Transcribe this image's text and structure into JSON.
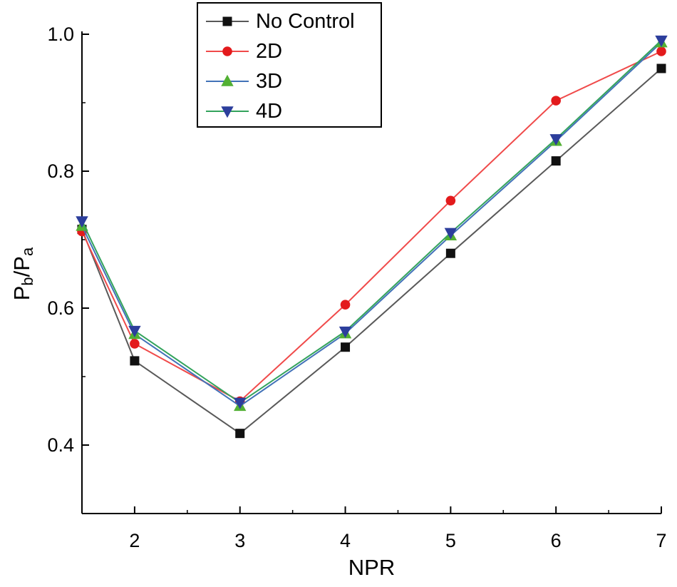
{
  "page": {
    "background": "#ffffff"
  },
  "chart_data": {
    "type": "line",
    "title": "",
    "xlabel": "NPR",
    "ylabel": "Pb/Pa",
    "ylabel_parts": [
      {
        "text": "P",
        "sub": false
      },
      {
        "text": "b",
        "sub": true
      },
      {
        "text": "/P",
        "sub": false
      },
      {
        "text": "a",
        "sub": true
      }
    ],
    "xlim": [
      1.5,
      7
    ],
    "ylim": [
      0.3,
      1.0
    ],
    "xticks": [
      2,
      3,
      4,
      5,
      6,
      7
    ],
    "yticks": [
      0.4,
      0.6,
      0.8,
      1.0
    ],
    "x_minor_ticks": [
      2.5,
      3.5,
      4.5,
      5.5,
      6.5
    ],
    "y_minor_ticks": [
      0.5,
      0.7,
      0.9
    ],
    "x": [
      1.5,
      2,
      3,
      4,
      5,
      6,
      7
    ],
    "series": [
      {
        "name": "No Control",
        "marker": "square",
        "marker_color": "#111111",
        "line_color": "#595959",
        "values": [
          0.715,
          0.523,
          0.417,
          0.543,
          0.68,
          0.815,
          0.95
        ]
      },
      {
        "name": "2D",
        "marker": "circle",
        "marker_color": "#e31a1c",
        "line_color": "#f04a4a",
        "values": [
          0.712,
          0.548,
          0.464,
          0.605,
          0.757,
          0.903,
          0.975
        ]
      },
      {
        "name": "3D",
        "marker": "triangle-up",
        "marker_color": "#52b033",
        "line_color": "#4272b8",
        "values": [
          0.72,
          0.562,
          0.457,
          0.563,
          0.706,
          0.844,
          0.988
        ]
      },
      {
        "name": "4D",
        "marker": "triangle-down",
        "marker_color": "#2c3e9c",
        "line_color": "#33a35c",
        "values": [
          0.727,
          0.567,
          0.462,
          0.566,
          0.71,
          0.847,
          0.991
        ]
      }
    ],
    "legend": {
      "labels": [
        "No Control",
        "2D",
        "3D",
        "4D"
      ],
      "position": "top-center",
      "border": true
    },
    "grid": false,
    "axis_color": "#000000"
  }
}
